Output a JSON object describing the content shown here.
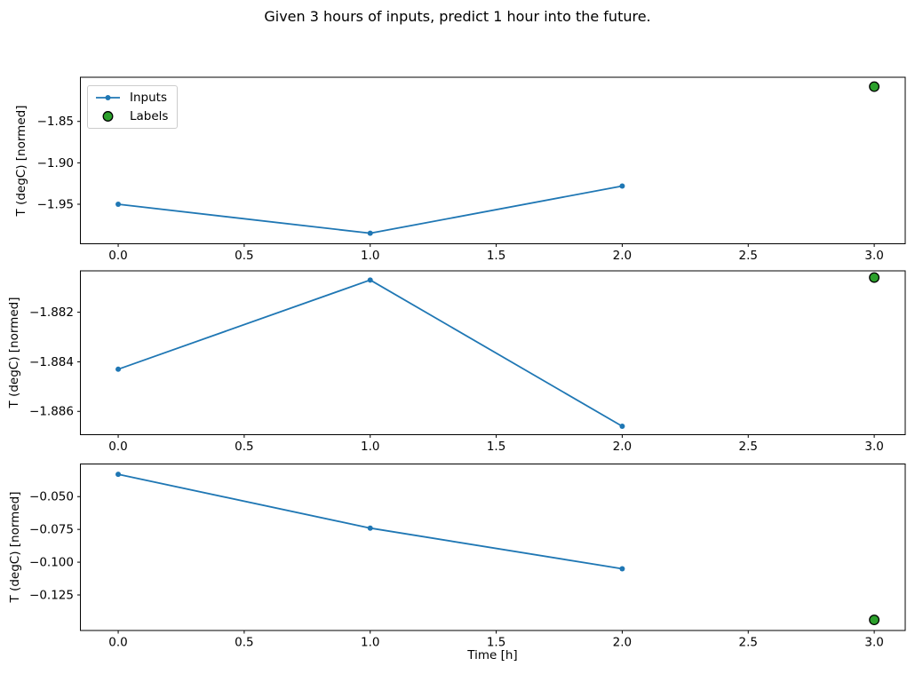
{
  "figure": {
    "title": "Given 3 hours of inputs, predict 1 hour into the future.",
    "background": "#ffffff"
  },
  "colors": {
    "inputs_line": "#1f77b4",
    "labels_fill": "#2ca02c",
    "labels_edge": "#000000",
    "axis": "#000000",
    "legend_border": "#cccccc"
  },
  "legend": {
    "position": "upper left",
    "items": [
      {
        "label": "Inputs",
        "marker": "line-with-dot",
        "color": "#1f77b4"
      },
      {
        "label": "Labels",
        "marker": "filled-circle",
        "color": "#2ca02c",
        "edge": "#000000"
      }
    ]
  },
  "chart_data": [
    {
      "type": "line",
      "title": "",
      "xlabel": "",
      "ylabel": "T (degC) [normed]",
      "x": [
        0.0,
        1.0,
        2.0
      ],
      "series": [
        {
          "name": "Inputs",
          "color": "#1f77b4",
          "values": [
            -1.95,
            -1.985,
            -1.928
          ]
        }
      ],
      "labels_series": {
        "name": "Labels",
        "color": "#2ca02c",
        "edge_color": "#000000",
        "points": [
          {
            "x": 3.0,
            "y": -1.808
          }
        ]
      },
      "xlim": [
        -0.15,
        3.123
      ],
      "ylim": [
        -1.9977,
        -1.7967
      ],
      "xticks": {
        "values": [
          0.0,
          0.5,
          1.0,
          1.5,
          2.0,
          2.5,
          3.0
        ],
        "labels": [
          "0.0",
          "0.5",
          "1.0",
          "1.5",
          "2.0",
          "2.5",
          "3.0"
        ]
      },
      "yticks": {
        "values": [
          -1.85,
          -1.9,
          -1.95
        ],
        "labels": [
          "−1.85",
          "−1.90",
          "−1.95"
        ]
      },
      "grid": false,
      "legend_visible": true
    },
    {
      "type": "line",
      "title": "",
      "xlabel": "",
      "ylabel": "T (degC) [normed]",
      "x": [
        0.0,
        1.0,
        2.0
      ],
      "series": [
        {
          "name": "Inputs",
          "color": "#1f77b4",
          "values": [
            -1.8843,
            -1.8807,
            -1.8866
          ]
        }
      ],
      "labels_series": {
        "name": "Labels",
        "color": "#2ca02c",
        "edge_color": "#000000",
        "points": [
          {
            "x": 3.0,
            "y": -1.8806
          }
        ]
      },
      "xlim": [
        -0.15,
        3.123
      ],
      "ylim": [
        -1.88694,
        -1.88033
      ],
      "xticks": {
        "values": [
          0.0,
          0.5,
          1.0,
          1.5,
          2.0,
          2.5,
          3.0
        ],
        "labels": [
          "0.0",
          "0.5",
          "1.0",
          "1.5",
          "2.0",
          "2.5",
          "3.0"
        ]
      },
      "yticks": {
        "values": [
          -1.882,
          -1.884,
          -1.886
        ],
        "labels": [
          "−1.882",
          "−1.884",
          "−1.886"
        ]
      },
      "grid": false,
      "legend_visible": false
    },
    {
      "type": "line",
      "title": "",
      "xlabel": "Time [h]",
      "ylabel": "T (degC) [normed]",
      "x": [
        0.0,
        1.0,
        2.0
      ],
      "series": [
        {
          "name": "Inputs",
          "color": "#1f77b4",
          "values": [
            -0.033,
            -0.074,
            -0.105
          ]
        }
      ],
      "labels_series": {
        "name": "Labels",
        "color": "#2ca02c",
        "edge_color": "#000000",
        "points": [
          {
            "x": 3.0,
            "y": -0.144
          }
        ]
      },
      "xlim": [
        -0.15,
        3.123
      ],
      "ylim": [
        -0.1521,
        -0.0251
      ],
      "xticks": {
        "values": [
          0.0,
          0.5,
          1.0,
          1.5,
          2.0,
          2.5,
          3.0
        ],
        "labels": [
          "0.0",
          "0.5",
          "1.0",
          "1.5",
          "2.0",
          "2.5",
          "3.0"
        ]
      },
      "yticks": {
        "values": [
          -0.05,
          -0.075,
          -0.1,
          -0.125
        ],
        "labels": [
          "−0.050",
          "−0.075",
          "−0.100",
          "−0.125"
        ]
      },
      "grid": false,
      "legend_visible": false
    }
  ]
}
